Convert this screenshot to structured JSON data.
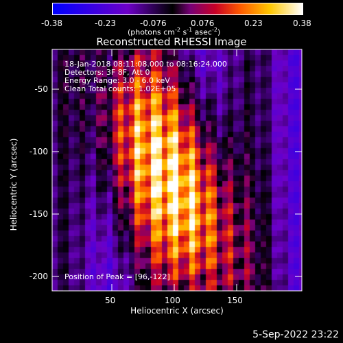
{
  "colorbar": {
    "tick_labels": [
      "-0.38",
      "-0.23",
      "-0.076",
      "0.076",
      "0.23",
      "0.38"
    ],
    "units_prefix": "(photons cm",
    "units_exp1": "-2",
    "units_mid1": " s",
    "units_exp2": "-1",
    "units_mid2": " asec",
    "units_exp3": "-2",
    "units_suffix": ")"
  },
  "plot": {
    "title": "Reconstructed RHESSI Image",
    "xlabel": "Heliocentric X (arcsec)",
    "ylabel": "Heliocentric Y (arcsec)",
    "x_ticks": [
      "50",
      "100",
      "150"
    ],
    "y_ticks": [
      "-50",
      "-100",
      "-150",
      "-200"
    ],
    "info_lines": [
      "18-Jan-2018 08:11:08.000 to 08:16:24.000",
      "Detectors: 3F 8F, Att 0",
      "Energy Range: 3.0 - 6.0 keV",
      "Clean     Total counts: 1.02E+05"
    ],
    "peak_label": "Position of Peak = [96,-122]"
  },
  "footer": {
    "date": "5-Sep-2022 23:22"
  },
  "colors": {
    "background": "#000000",
    "text": "#ffffff"
  }
}
